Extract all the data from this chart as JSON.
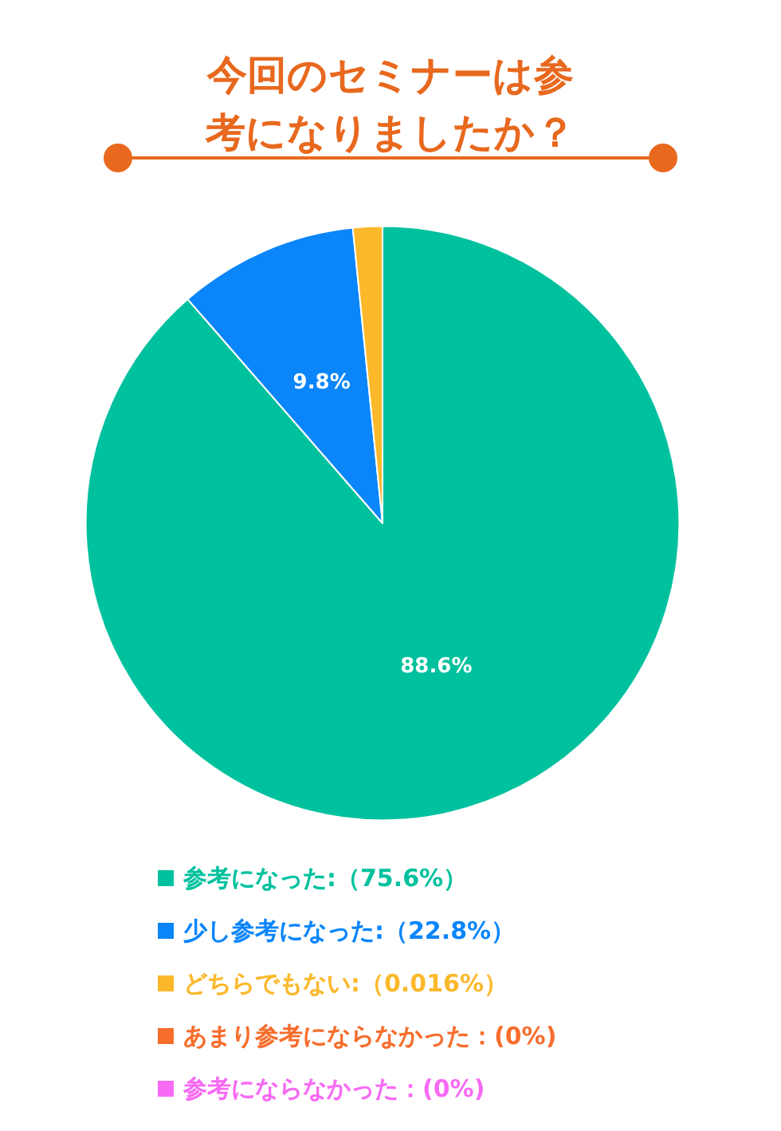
{
  "chart_data": {
    "type": "pie",
    "title": "今回のセミナーは参考になりましたか？",
    "categories": [
      "参考になった:（75.6%）",
      "少し参考になった:（22.8%）",
      "どちらでもない:（0.016%）",
      "あまり参考にならなかった：(0%)",
      "参考にならなかった：(0%)"
    ],
    "values": [
      88.6,
      9.8,
      1.6,
      0,
      0
    ],
    "colors": [
      "#00c19e",
      "#0a85fa",
      "#fbb82a",
      "#f76d2c",
      "#f76af4"
    ],
    "value_labels": [
      "88.6%",
      "9.8%",
      null,
      null,
      null
    ],
    "legend": "bottom"
  }
}
